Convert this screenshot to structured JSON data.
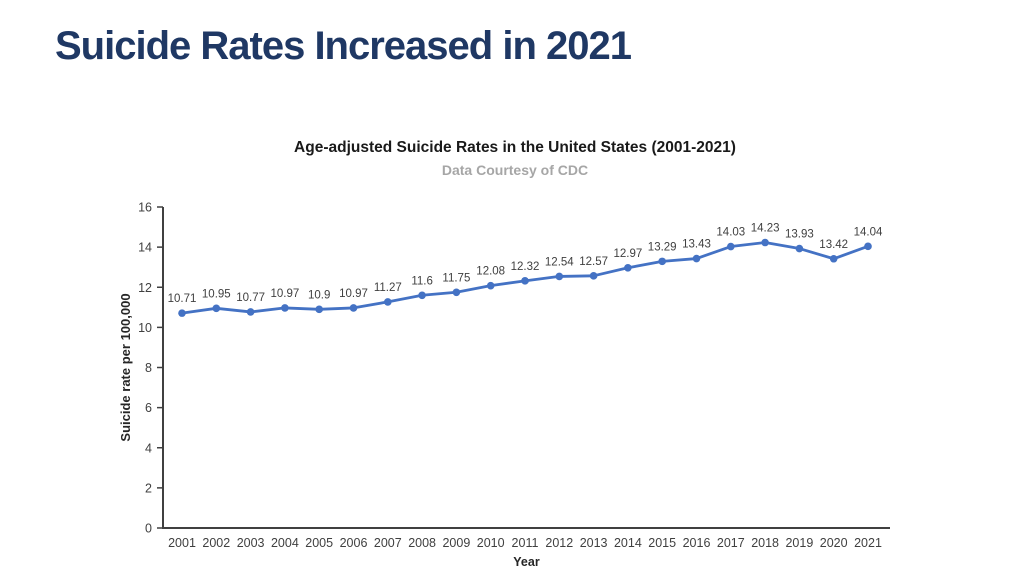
{
  "page": {
    "heading": "Suicide Rates Increased in 2021"
  },
  "chart_data": {
    "type": "line",
    "title": "Age-adjusted Suicide Rates in the United States (2001-2021)",
    "subtitle": "Data Courtesy of CDC",
    "xlabel": "Year",
    "ylabel": "Suicide rate per 100,000",
    "categories": [
      "2001",
      "2002",
      "2003",
      "2004",
      "2005",
      "2006",
      "2007",
      "2008",
      "2009",
      "2010",
      "2011",
      "2012",
      "2013",
      "2014",
      "2015",
      "2016",
      "2017",
      "2018",
      "2019",
      "2020",
      "2021"
    ],
    "values": [
      10.71,
      10.95,
      10.77,
      10.97,
      10.9,
      10.97,
      11.27,
      11.6,
      11.75,
      12.08,
      12.32,
      12.54,
      12.57,
      12.97,
      13.29,
      13.43,
      14.03,
      14.23,
      13.93,
      13.42,
      14.04
    ],
    "ylim": [
      0,
      16
    ],
    "ytick_step": 2,
    "grid": false,
    "legend": "none",
    "data_labels": true,
    "line_color": "#4472c4",
    "marker_color": "#4472c4",
    "label_color": "#404040",
    "tick_label_color": "#404040",
    "axis_color": "#404040",
    "axis_title_color": "#262626"
  }
}
